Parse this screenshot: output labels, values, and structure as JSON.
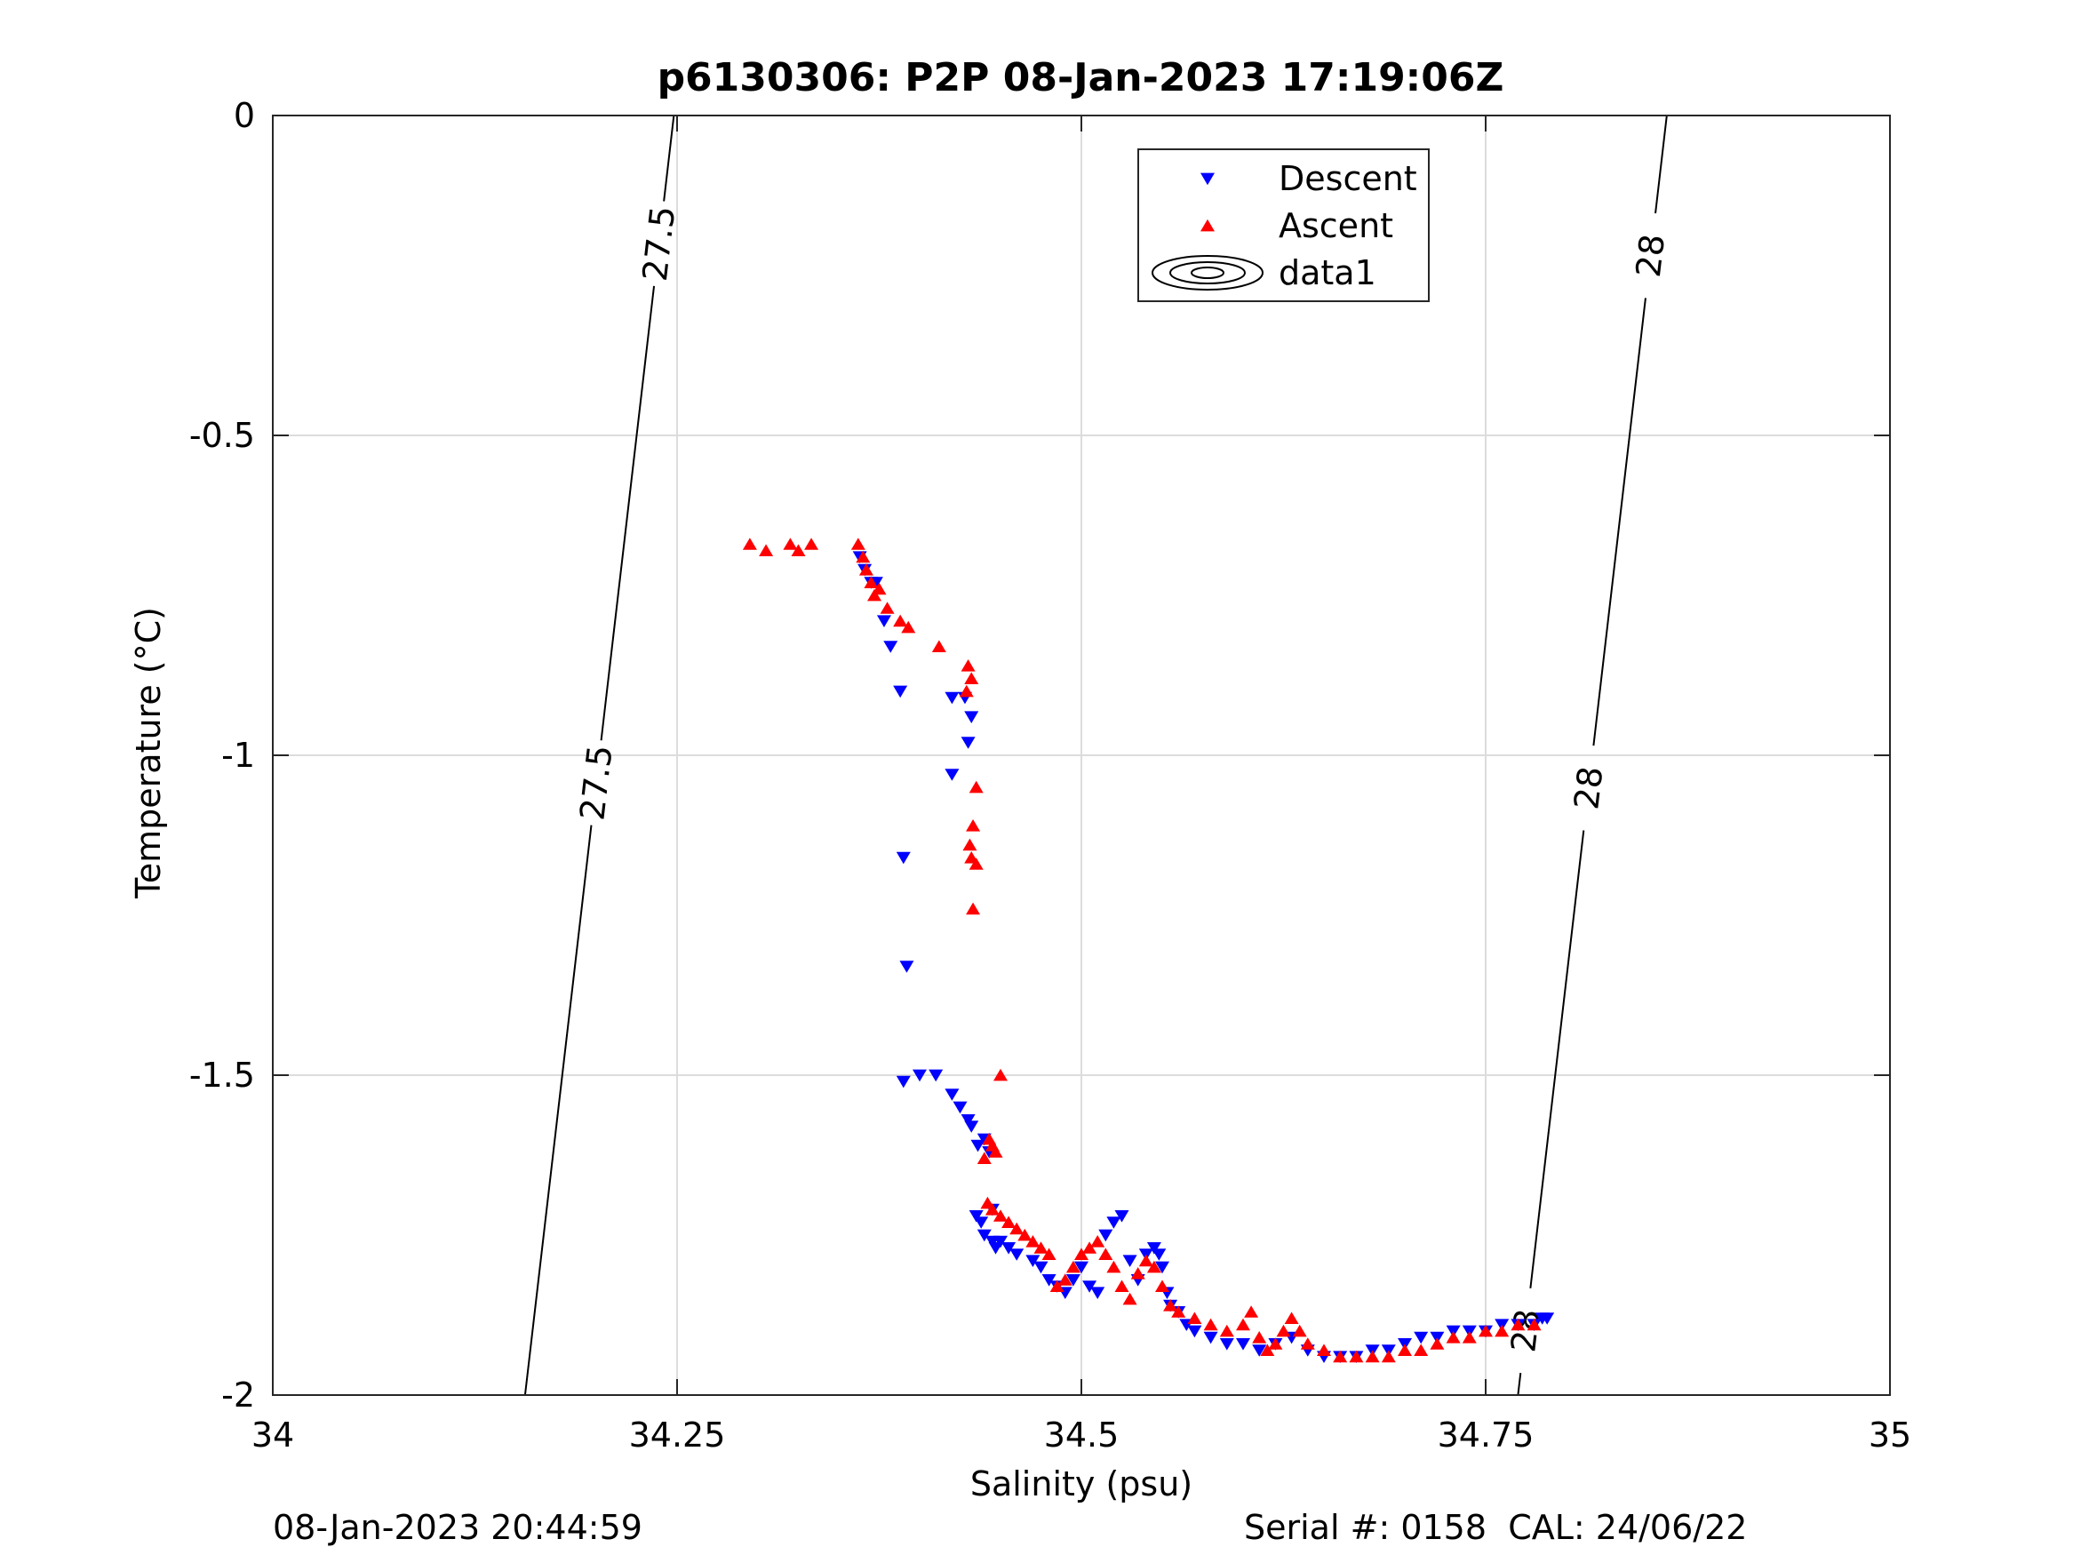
{
  "chart_data": {
    "type": "scatter",
    "title": "p6130306: P2P 08-Jan-2023 17:19:06Z",
    "xlabel": "Salinity (psu)",
    "ylabel": "Temperature (°C)",
    "xlim": [
      34,
      35
    ],
    "ylim": [
      -2,
      0
    ],
    "xticks": [
      34,
      34.25,
      34.5,
      34.75,
      35
    ],
    "xtick_labels": [
      "34",
      "34.25",
      "34.5",
      "34.75",
      "35"
    ],
    "yticks": [
      0,
      -0.5,
      -1,
      -1.5,
      -2
    ],
    "ytick_labels": [
      "0",
      "-0.5",
      "-1",
      "-1.5",
      "-2"
    ],
    "grid": true,
    "legend_position": "top-center",
    "legend": [
      {
        "label": "Descent",
        "marker": "triangle-down",
        "color": "#0000ff"
      },
      {
        "label": "Ascent",
        "marker": "triangle-up",
        "color": "#ff0000"
      },
      {
        "label": "data1",
        "marker": "contour",
        "color": "#000000"
      }
    ],
    "contours": [
      {
        "level_label": "27.5",
        "points": [
          [
            34.156,
            -2.0
          ],
          [
            34.248,
            0.0
          ]
        ],
        "label_at": [
          [
            34.238,
            -0.2
          ],
          [
            34.19,
            -1.04
          ]
        ]
      },
      {
        "level_label": "28",
        "points": [
          [
            34.77,
            -2.0
          ],
          [
            34.862,
            0.0
          ]
        ],
        "label_at": [
          [
            34.855,
            -0.22
          ],
          [
            34.81,
            -1.05
          ],
          [
            34.777,
            -1.9
          ]
        ]
      }
    ],
    "series": [
      {
        "name": "Descent",
        "marker": "triangle-down",
        "color": "#0000ff",
        "x": [
          34.363,
          34.366,
          34.37,
          34.373,
          34.378,
          34.382,
          34.388,
          34.39,
          34.392,
          34.42,
          34.428,
          34.432,
          34.43,
          34.42,
          34.41,
          34.4,
          34.39,
          34.42,
          34.425,
          34.43,
          34.432,
          34.436,
          34.44,
          34.443,
          34.445,
          34.438,
          34.435,
          34.44,
          34.445,
          34.447,
          34.45,
          34.455,
          34.46,
          34.47,
          34.475,
          34.48,
          34.485,
          34.49,
          34.495,
          34.5,
          34.505,
          34.51,
          34.515,
          34.52,
          34.525,
          34.53,
          34.535,
          34.54,
          34.545,
          34.548,
          34.55,
          34.553,
          34.555,
          34.56,
          34.565,
          34.57,
          34.58,
          34.59,
          34.6,
          34.61,
          34.62,
          34.63,
          34.64,
          34.65,
          34.66,
          34.67,
          34.68,
          34.69,
          34.7,
          34.71,
          34.72,
          34.73,
          34.74,
          34.75,
          34.76,
          34.77,
          34.78,
          34.785,
          34.788
        ],
        "y": [
          -0.69,
          -0.71,
          -0.73,
          -0.73,
          -0.79,
          -0.83,
          -0.9,
          -1.16,
          -1.33,
          -0.91,
          -0.91,
          -0.94,
          -0.98,
          -1.03,
          -1.5,
          -1.5,
          -1.51,
          -1.53,
          -1.55,
          -1.57,
          -1.58,
          -1.61,
          -1.6,
          -1.62,
          -1.71,
          -1.73,
          -1.72,
          -1.75,
          -1.76,
          -1.77,
          -1.76,
          -1.77,
          -1.78,
          -1.79,
          -1.8,
          -1.82,
          -1.83,
          -1.84,
          -1.82,
          -1.8,
          -1.83,
          -1.84,
          -1.75,
          -1.73,
          -1.72,
          -1.79,
          -1.82,
          -1.78,
          -1.77,
          -1.78,
          -1.8,
          -1.84,
          -1.86,
          -1.87,
          -1.89,
          -1.9,
          -1.91,
          -1.92,
          -1.92,
          -1.93,
          -1.92,
          -1.91,
          -1.93,
          -1.94,
          -1.94,
          -1.94,
          -1.93,
          -1.93,
          -1.92,
          -1.91,
          -1.91,
          -1.9,
          -1.9,
          -1.9,
          -1.89,
          -1.89,
          -1.89,
          -1.88,
          -1.88
        ]
      },
      {
        "name": "Ascent",
        "marker": "triangle-up",
        "color": "#ff0000",
        "x": [
          34.295,
          34.305,
          34.32,
          34.325,
          34.333,
          34.362,
          34.365,
          34.367,
          34.37,
          34.372,
          34.375,
          34.38,
          34.388,
          34.393,
          34.412,
          34.43,
          34.432,
          34.429,
          34.435,
          34.433,
          34.431,
          34.432,
          34.435,
          34.433,
          34.45,
          34.443,
          34.445,
          34.447,
          34.44,
          34.442,
          34.445,
          34.45,
          34.455,
          34.46,
          34.465,
          34.47,
          34.475,
          34.48,
          34.485,
          34.49,
          34.495,
          34.5,
          34.505,
          34.51,
          34.515,
          34.52,
          34.525,
          34.53,
          34.535,
          34.54,
          34.545,
          34.55,
          34.555,
          34.56,
          34.57,
          34.58,
          34.59,
          34.6,
          34.605,
          34.61,
          34.615,
          34.62,
          34.625,
          34.63,
          34.635,
          34.64,
          34.65,
          34.66,
          34.67,
          34.68,
          34.69,
          34.7,
          34.71,
          34.72,
          34.73,
          34.74,
          34.75,
          34.76,
          34.77,
          34.78
        ],
        "y": [
          -0.67,
          -0.68,
          -0.67,
          -0.68,
          -0.67,
          -0.67,
          -0.69,
          -0.71,
          -0.73,
          -0.75,
          -0.74,
          -0.77,
          -0.79,
          -0.8,
          -0.83,
          -0.86,
          -0.88,
          -0.9,
          -1.05,
          -1.11,
          -1.14,
          -1.16,
          -1.17,
          -1.24,
          -1.5,
          -1.6,
          -1.61,
          -1.62,
          -1.63,
          -1.7,
          -1.71,
          -1.72,
          -1.73,
          -1.74,
          -1.75,
          -1.76,
          -1.77,
          -1.78,
          -1.83,
          -1.82,
          -1.8,
          -1.78,
          -1.77,
          -1.76,
          -1.78,
          -1.8,
          -1.83,
          -1.85,
          -1.81,
          -1.79,
          -1.8,
          -1.83,
          -1.86,
          -1.87,
          -1.88,
          -1.89,
          -1.9,
          -1.89,
          -1.87,
          -1.91,
          -1.93,
          -1.92,
          -1.9,
          -1.88,
          -1.9,
          -1.92,
          -1.93,
          -1.94,
          -1.94,
          -1.94,
          -1.94,
          -1.93,
          -1.93,
          -1.92,
          -1.91,
          -1.91,
          -1.9,
          -1.9,
          -1.89,
          -1.89
        ]
      }
    ]
  },
  "footer": {
    "left": "08-Jan-2023 20:44:59",
    "right": "Serial #: 0158  CAL: 24/06/22"
  }
}
